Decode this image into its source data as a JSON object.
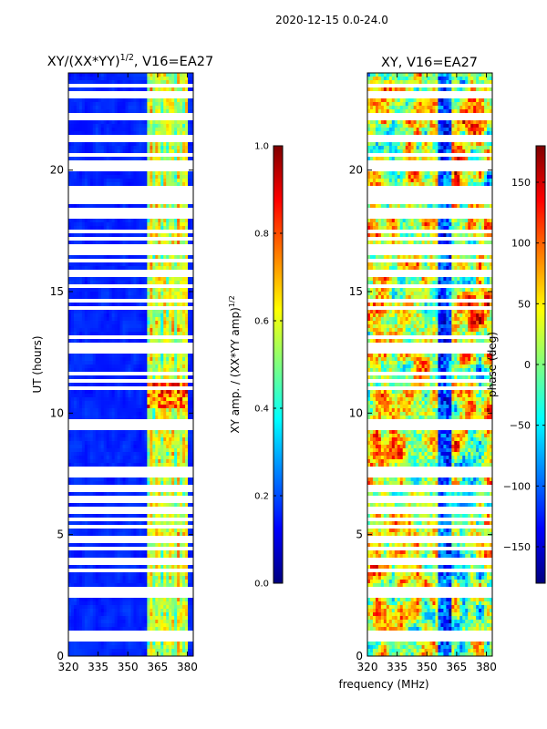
{
  "figure": {
    "suptitle": "2020-12-15 0.0-24.0",
    "xlabel_common": "frequency (MHz)"
  },
  "colors": {
    "jet": [
      "#00007f",
      "#0000ff",
      "#007fff",
      "#00ffff",
      "#7fff7f",
      "#ffff00",
      "#ff7f00",
      "#ff0000",
      "#7f0000"
    ],
    "gap": "#ffffff"
  },
  "chart_data": [
    {
      "type": "heatmap",
      "title_main": "XY/(XX*YY)",
      "title_sup": "1/2",
      "title_tail": ", V16=EA27",
      "xlabel": "",
      "ylabel": "UT (hours)",
      "xlim": [
        320,
        383
      ],
      "ylim": [
        0,
        24
      ],
      "xticks": [
        "320",
        "335",
        "350",
        "365",
        "380"
      ],
      "yticks": [
        "0",
        "5",
        "10",
        "15",
        "20"
      ],
      "xtick_values": [
        320,
        335,
        350,
        365,
        380
      ],
      "ytick_values": [
        0,
        5,
        10,
        15,
        20
      ],
      "colorbar": {
        "label_main": "XY amp. / (XX*YY amp)",
        "label_sup": "1/2",
        "range": [
          0.0,
          1.0
        ],
        "ticks": [
          "0.0",
          "0.2",
          "0.4",
          "0.6",
          "0.8",
          "1.0"
        ],
        "tick_values": [
          0.0,
          0.2,
          0.4,
          0.6,
          0.8,
          1.0
        ]
      },
      "bright_band_mhz": [
        360,
        380
      ],
      "strong_time_hours": [
        10.2,
        11.2
      ],
      "gap_hours": [
        0.75,
        0.9,
        2.55,
        2.75,
        3.5,
        3.9,
        4.4,
        4.8,
        5.3,
        5.6,
        6.0,
        6.45,
        6.9,
        7.45,
        7.6,
        7.75,
        9.4,
        9.5,
        9.6,
        11.0,
        11.3,
        11.6,
        12.5,
        12.75,
        13.1,
        14.3,
        14.6,
        15.2,
        15.75,
        16.3,
        16.6,
        16.75,
        16.9,
        17.2,
        17.5,
        18.1,
        18.3,
        18.75,
        18.9,
        19.1,
        19.3,
        20.1,
        20.35,
        20.6,
        21.3,
        22.1,
        22.3,
        23.1,
        23.45
      ]
    },
    {
      "type": "heatmap",
      "title_main": "XY, V16=EA27",
      "title_sup": "",
      "title_tail": "",
      "xlabel": "frequency (MHz)",
      "ylabel": "",
      "xlim": [
        320,
        383
      ],
      "ylim": [
        0,
        24
      ],
      "xticks": [
        "320",
        "335",
        "350",
        "365",
        "380"
      ],
      "yticks": [
        "0",
        "5",
        "10",
        "15",
        "20"
      ],
      "xtick_values": [
        320,
        335,
        350,
        365,
        380
      ],
      "ytick_values": [
        0,
        5,
        10,
        15,
        20
      ],
      "colorbar": {
        "label_main": "phase (deg)",
        "label_sup": "",
        "range": [
          -180,
          180
        ],
        "ticks": [
          "−150",
          "−100",
          "−50",
          "0",
          "50",
          "100",
          "150"
        ],
        "tick_values": [
          -150,
          -100,
          -50,
          0,
          50,
          100,
          150
        ]
      },
      "gap_hours": [
        0.75,
        0.9,
        2.55,
        2.75,
        3.5,
        3.9,
        4.4,
        4.8,
        5.3,
        5.6,
        6.0,
        6.45,
        6.9,
        7.45,
        7.6,
        7.75,
        9.4,
        9.5,
        9.6,
        11.0,
        11.3,
        11.6,
        12.5,
        12.75,
        13.1,
        14.3,
        14.6,
        15.2,
        15.75,
        16.3,
        16.6,
        16.75,
        16.9,
        17.2,
        17.5,
        18.1,
        18.3,
        18.75,
        18.9,
        19.1,
        19.3,
        20.1,
        20.35,
        20.6,
        21.3,
        22.1,
        22.3,
        23.1,
        23.45
      ]
    }
  ]
}
